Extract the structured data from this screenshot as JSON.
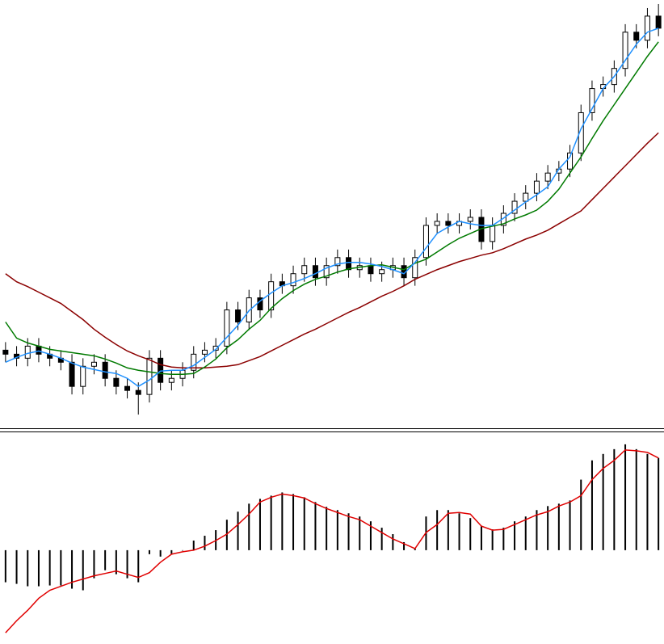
{
  "chart_data": [
    {
      "type": "candlestick",
      "ylim": [
        0,
        530
      ],
      "up_color": "#ffffff",
      "down_color": "#000000",
      "edge_color": "#000000",
      "open": [
        95,
        90,
        85,
        100,
        90,
        85,
        80,
        50,
        75,
        80,
        60,
        50,
        45,
        40,
        85,
        55,
        60,
        70,
        90,
        95,
        100,
        145,
        130,
        160,
        145,
        180,
        175,
        190,
        200,
        185,
        200,
        210,
        195,
        200,
        190,
        195,
        200,
        185,
        210,
        250,
        255,
        250,
        255,
        260,
        230,
        250,
        265,
        280,
        290,
        305,
        315,
        320,
        340,
        390,
        420,
        425,
        445,
        490,
        480,
        510
      ],
      "high": [
        105,
        100,
        110,
        110,
        100,
        95,
        90,
        85,
        90,
        90,
        70,
        60,
        55,
        95,
        95,
        70,
        80,
        100,
        105,
        110,
        155,
        155,
        170,
        170,
        190,
        190,
        200,
        210,
        210,
        210,
        220,
        220,
        210,
        210,
        205,
        210,
        210,
        220,
        260,
        265,
        265,
        265,
        270,
        270,
        260,
        275,
        290,
        300,
        315,
        325,
        330,
        350,
        400,
        430,
        435,
        455,
        500,
        500,
        520,
        525
      ],
      "low": [
        80,
        75,
        75,
        80,
        75,
        70,
        40,
        40,
        65,
        50,
        40,
        35,
        15,
        30,
        45,
        45,
        50,
        60,
        80,
        85,
        90,
        120,
        120,
        135,
        135,
        165,
        165,
        180,
        175,
        175,
        190,
        185,
        185,
        180,
        180,
        185,
        175,
        175,
        200,
        240,
        240,
        240,
        245,
        220,
        220,
        240,
        255,
        270,
        280,
        295,
        305,
        310,
        330,
        380,
        410,
        415,
        435,
        470,
        470,
        485
      ],
      "close": [
        90,
        85,
        100,
        90,
        85,
        80,
        50,
        75,
        80,
        60,
        50,
        45,
        40,
        85,
        55,
        60,
        70,
        90,
        95,
        100,
        145,
        130,
        160,
        145,
        180,
        175,
        190,
        200,
        185,
        200,
        210,
        195,
        200,
        190,
        195,
        200,
        185,
        210,
        250,
        255,
        250,
        255,
        260,
        230,
        250,
        265,
        280,
        290,
        305,
        315,
        320,
        340,
        390,
        420,
        425,
        445,
        490,
        480,
        510,
        495
      ],
      "series": [
        {
          "color": "#8b0000",
          "values": [
            190,
            180,
            174,
            167,
            160,
            153,
            143,
            133,
            121,
            111,
            102,
            94,
            88,
            83,
            77,
            74,
            73,
            73,
            73,
            74,
            75,
            77,
            82,
            87,
            94,
            101,
            108,
            115,
            121,
            128,
            135,
            142,
            148,
            155,
            162,
            168,
            175,
            183,
            189,
            195,
            200,
            205,
            209,
            213,
            216,
            221,
            227,
            233,
            238,
            244,
            252,
            260,
            268,
            282,
            296,
            310,
            324,
            338,
            352,
            365
          ]
        },
        {
          "color": "#007a00",
          "values": [
            130,
            110,
            104,
            100,
            96,
            94,
            92,
            90,
            88,
            84,
            79,
            73,
            70,
            68,
            66,
            65,
            65,
            66,
            74,
            84,
            98,
            108,
            121,
            132,
            147,
            159,
            169,
            177,
            183,
            187,
            192,
            196,
            198,
            200,
            201,
            198,
            195,
            203,
            208,
            217,
            226,
            234,
            240,
            246,
            249,
            252,
            258,
            263,
            269,
            280,
            295,
            315,
            335,
            358,
            380,
            400,
            420,
            440,
            460,
            478
          ]
        },
        {
          "color": "#1e90ff",
          "values": [
            80,
            86,
            91,
            94,
            90,
            85,
            79,
            74,
            71,
            68,
            66,
            60,
            50,
            58,
            69,
            70,
            70,
            76,
            86,
            96,
            111,
            126,
            144,
            156,
            166,
            175,
            179,
            184,
            190,
            197,
            202,
            204,
            204,
            202,
            199,
            195,
            190,
            204,
            222,
            240,
            248,
            255,
            252,
            250,
            250,
            259,
            269,
            279,
            288,
            298,
            320,
            335,
            370,
            395,
            420,
            435,
            455,
            475,
            490,
            495
          ]
        }
      ]
    },
    {
      "type": "bar",
      "ylim": [
        -117,
        145
      ],
      "color": "#000000",
      "values": [
        -40,
        -42,
        -45,
        -45,
        -44,
        -44,
        -48,
        -50,
        -35,
        -25,
        -30,
        -35,
        -40,
        -5,
        -8,
        -5,
        0,
        12,
        18,
        25,
        38,
        48,
        58,
        64,
        68,
        72,
        70,
        66,
        60,
        54,
        50,
        46,
        42,
        36,
        28,
        20,
        10,
        2,
        42,
        50,
        50,
        46,
        40,
        30,
        26,
        28,
        36,
        42,
        50,
        55,
        58,
        62,
        88,
        112,
        120,
        126,
        132,
        126,
        120,
        115
      ],
      "series": [
        {
          "color": "#e00000",
          "values": [
            -103,
            -88,
            -75,
            -60,
            -50,
            -45,
            -40,
            -36,
            -32,
            -29,
            -26,
            -30,
            -34,
            -28,
            -15,
            -5,
            -2,
            0,
            5,
            12,
            20,
            32,
            45,
            60,
            66,
            70,
            68,
            65,
            58,
            52,
            47,
            42,
            38,
            30,
            22,
            14,
            8,
            2,
            22,
            32,
            46,
            47,
            45,
            30,
            25,
            26,
            32,
            38,
            44,
            48,
            55,
            60,
            68,
            88,
            102,
            112,
            125,
            124,
            122,
            115
          ]
        }
      ]
    }
  ]
}
